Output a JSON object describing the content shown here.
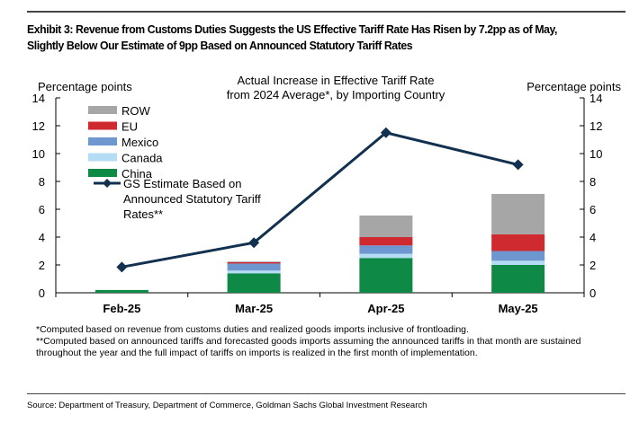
{
  "header": {
    "title": "Exhibit 3: Revenue from Customs Duties Suggests the US Effective Tariff Rate Has Risen by 7.2pp as of May, Slightly Below Our Estimate of 9pp Based on Announced Statutory Tariff Rates"
  },
  "chart_data": {
    "type": "bar",
    "title_lines": [
      "Actual Increase in Effective Tariff Rate",
      "from 2024 Average*, by Importing Country"
    ],
    "ylabel_left": "Percentage points",
    "ylabel_right": "Percentage points",
    "ylim": [
      0,
      14
    ],
    "yticks": [
      0,
      2,
      4,
      6,
      8,
      10,
      12,
      14
    ],
    "categories": [
      "Feb-25",
      "Mar-25",
      "Apr-25",
      "May-25"
    ],
    "stacked": true,
    "series": [
      {
        "name": "China",
        "color": "#0f8a46",
        "values": [
          0.2,
          1.4,
          2.5,
          2.0
        ]
      },
      {
        "name": "Canada",
        "color": "#b4dcf5",
        "values": [
          0,
          0.2,
          0.3,
          0.3
        ]
      },
      {
        "name": "Mexico",
        "color": "#6f97cf",
        "values": [
          0,
          0.5,
          0.6,
          0.7
        ]
      },
      {
        "name": "EU",
        "color": "#cf2a2f",
        "values": [
          0,
          0.1,
          0.6,
          1.2
        ]
      },
      {
        "name": "ROW",
        "color": "#a6a6a6",
        "values": [
          0,
          0.05,
          1.55,
          2.9
        ]
      }
    ],
    "line": {
      "name_lines": [
        "GS Estimate Based on",
        "Announced Statutory Tariff",
        "Rates**"
      ],
      "color": "#12304f",
      "values": [
        1.85,
        3.6,
        11.5,
        9.2
      ]
    },
    "legend_order": [
      "ROW",
      "EU",
      "Mexico",
      "Canada",
      "China"
    ],
    "legend_placement": "top-left",
    "grid": false
  },
  "footnotes": [
    "*Computed based on revenue from customs duties and realized goods imports inclusive of frontloading.",
    "**Computed based on announced tariffs and forecasted goods imports assuming the announced tariffs in that month are sustained throughout the year and the full impact of tariffs on imports is realized in the first month of implementation."
  ],
  "source": "Source: Department of Treasury, Department of Commerce, Goldman Sachs Global Investment Research"
}
